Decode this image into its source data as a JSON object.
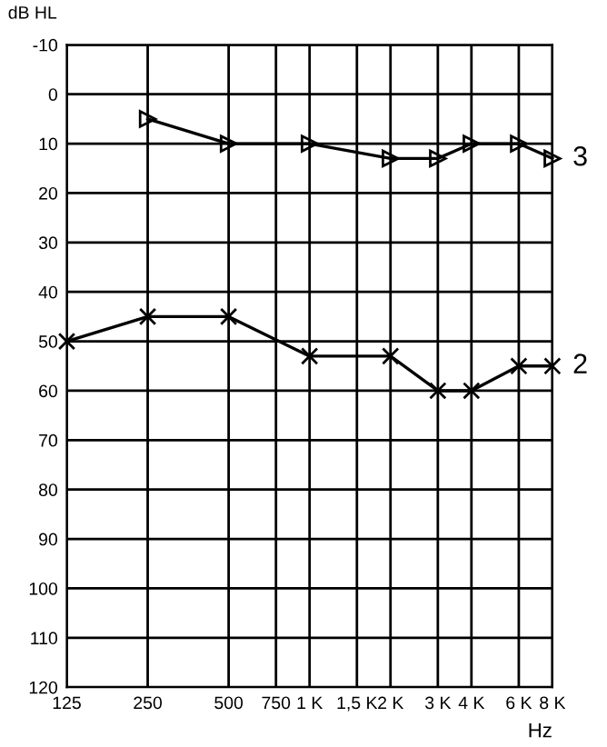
{
  "chart_data": {
    "type": "line",
    "xlabel": "Hz",
    "ylabel": "dB HL",
    "log": "x",
    "xlim": [
      125,
      8000
    ],
    "xticks": [
      125,
      250,
      500,
      750,
      {
        "value": 1000,
        "label": "1 K"
      },
      {
        "value": 1500,
        "label": "1,5 K"
      },
      {
        "value": 2000,
        "label": "2 K"
      },
      {
        "value": 3000,
        "label": "3 K"
      },
      {
        "value": 4000,
        "label": "4 K"
      },
      {
        "value": 6000,
        "label": "6 K"
      },
      {
        "value": 8000,
        "label": "8 K"
      }
    ],
    "ylim": [
      120,
      -10
    ],
    "yticks": [
      -10,
      0,
      10,
      20,
      30,
      40,
      50,
      60,
      70,
      80,
      90,
      100,
      110,
      120
    ],
    "grid": true,
    "series": [
      {
        "name": "3",
        "color": "#000000",
        "marker": "triangle",
        "x": [
          250,
          500,
          1000,
          2000,
          3000,
          4000,
          6000,
          8000
        ],
        "values": [
          5,
          10,
          10,
          13,
          13,
          10,
          10,
          13
        ]
      },
      {
        "name": "2",
        "color": "#000000",
        "marker": "cross",
        "x": [
          125,
          250,
          500,
          1000,
          2000,
          3000,
          4000,
          6000,
          8000
        ],
        "values": [
          50,
          45,
          45,
          53,
          53,
          60,
          60,
          55,
          55
        ]
      }
    ]
  }
}
